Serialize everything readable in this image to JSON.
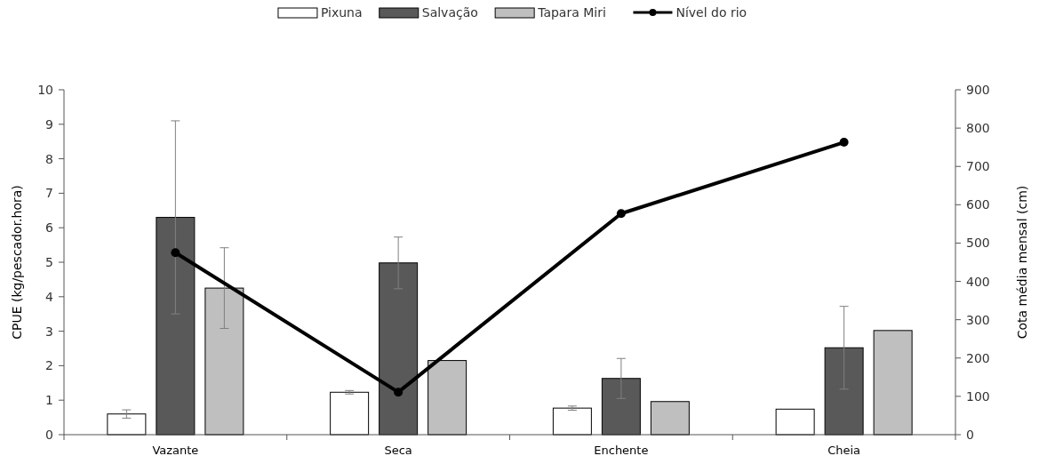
{
  "chart_data": {
    "type": "bar",
    "categories": [
      "Vazante",
      "Seca",
      "Enchente",
      "Cheia"
    ],
    "ylabel": "CPUE (kg/pescador.hora)",
    "y2label": "Cota média mensal (cm)",
    "ylim": [
      0,
      10
    ],
    "yticks": [
      0,
      1,
      2,
      3,
      4,
      5,
      6,
      7,
      8,
      9,
      10
    ],
    "y2lim": [
      0,
      900
    ],
    "y2ticks": [
      0,
      100,
      200,
      300,
      400,
      500,
      600,
      700,
      800,
      900
    ],
    "legend": "top",
    "grid": false,
    "series": [
      {
        "name": "Pixuna",
        "color": "#ffffff",
        "values": [
          0.6,
          1.23,
          0.77,
          0.74
        ],
        "errors": [
          0.12,
          0.05,
          0.06,
          null
        ]
      },
      {
        "name": "Salvação",
        "color": "#595959",
        "values": [
          6.3,
          4.98,
          1.63,
          2.52
        ],
        "errors": [
          2.8,
          0.75,
          0.58,
          1.2
        ]
      },
      {
        "name": "Tapara Miri",
        "color": "#bfbfbf",
        "values": [
          4.25,
          2.15,
          0.96,
          3.02
        ],
        "errors": [
          1.17,
          null,
          null,
          null
        ]
      },
      {
        "name": "Nível do rio",
        "type": "line",
        "axis": "y2",
        "color": "#000000",
        "marker": "circle",
        "values": [
          475,
          111,
          577,
          763
        ]
      }
    ]
  }
}
